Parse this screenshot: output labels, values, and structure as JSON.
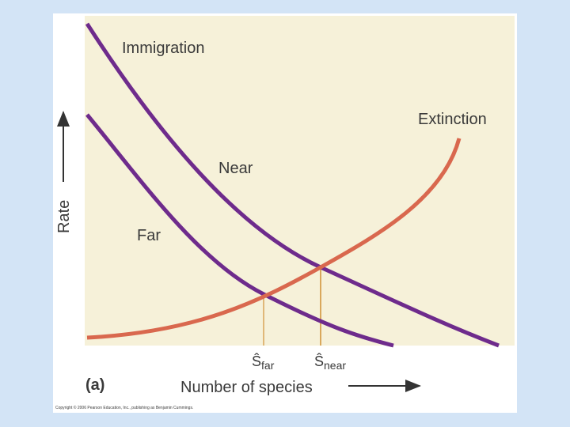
{
  "labels": {
    "immigration": "Immigration",
    "extinction": "Extinction",
    "near": "Near",
    "far": "Far",
    "y_axis": "Rate",
    "x_axis": "Number of species",
    "panel": "(a)",
    "s_far": {
      "symbol": "Ŝ",
      "subscript": "far"
    },
    "s_near": {
      "symbol": "Ŝ",
      "subscript": "near"
    },
    "copyright": "Copyright © 2006 Pearson Education, Inc., publishing as Benjamin Cummings."
  }
}
